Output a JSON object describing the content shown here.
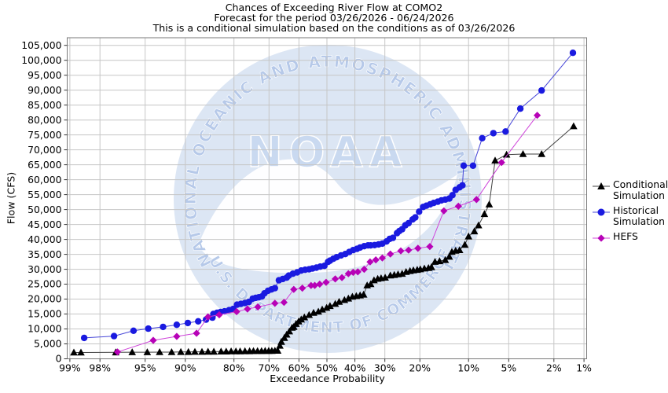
{
  "title_lines": [
    "Chances of Exceeding River Flow at COMO2",
    "Forecast for the period 03/26/2026 - 06/24/2026",
    "This is a conditional simulation based on the conditions as of 03/26/2026"
  ],
  "axes": {
    "x_label": "Exceedance Probability",
    "y_label": "Flow (CFS)",
    "x_ticks": [
      {
        "p": 99,
        "label": "99%"
      },
      {
        "p": 98,
        "label": "98%"
      },
      {
        "p": 95,
        "label": "95%"
      },
      {
        "p": 90,
        "label": "90%"
      },
      {
        "p": 80,
        "label": "80%"
      },
      {
        "p": 70,
        "label": "70%"
      },
      {
        "p": 60,
        "label": "60%"
      },
      {
        "p": 50,
        "label": "50%"
      },
      {
        "p": 40,
        "label": "40%"
      },
      {
        "p": 30,
        "label": "30%"
      },
      {
        "p": 20,
        "label": "20%"
      },
      {
        "p": 10,
        "label": "10%"
      },
      {
        "p": 5,
        "label": "5%"
      },
      {
        "p": 2,
        "label": "2%"
      },
      {
        "p": 1,
        "label": "1%"
      }
    ],
    "y_ticks": [
      {
        "v": 0,
        "label": "0"
      },
      {
        "v": 5000,
        "label": "5,000"
      },
      {
        "v": 10000,
        "label": "10,000"
      },
      {
        "v": 15000,
        "label": "15,000"
      },
      {
        "v": 20000,
        "label": "20,000"
      },
      {
        "v": 25000,
        "label": "25,000"
      },
      {
        "v": 30000,
        "label": "30,000"
      },
      {
        "v": 35000,
        "label": "35,000"
      },
      {
        "v": 40000,
        "label": "40,000"
      },
      {
        "v": 45000,
        "label": "45,000"
      },
      {
        "v": 50000,
        "label": "50,000"
      },
      {
        "v": 55000,
        "label": "55,000"
      },
      {
        "v": 60000,
        "label": "60,000"
      },
      {
        "v": 65000,
        "label": "65,000"
      },
      {
        "v": 70000,
        "label": "70,000"
      },
      {
        "v": 75000,
        "label": "75,000"
      },
      {
        "v": 80000,
        "label": "80,000"
      },
      {
        "v": 85000,
        "label": "85,000"
      },
      {
        "v": 90000,
        "label": "90,000"
      },
      {
        "v": 95000,
        "label": "95,000"
      },
      {
        "v": 100000,
        "label": "100,000"
      },
      {
        "v": 105000,
        "label": "105,000"
      }
    ]
  },
  "legend": {
    "items": [
      {
        "name": "conditional-simulation",
        "label": "Conditional Simulation",
        "marker": "triangle",
        "color": "#000000",
        "line_color": "#3f3f3f"
      },
      {
        "name": "historical-simulation",
        "label": "Historical Simulation",
        "marker": "circle",
        "color": "#1a1ae0",
        "line_color": "#4747d8"
      },
      {
        "name": "hefs",
        "label": "HEFS",
        "marker": "diamond",
        "color": "#b702b7",
        "line_color": "#cf46da"
      }
    ]
  },
  "watermark": {
    "top_arc_text": "NATIONAL OCEANIC AND ATMOSPHERIC ADMINISTRATION",
    "bottom_arc_text": "U.S. DEPARTMENT OF COMMERCE",
    "center_text": "NOAA",
    "circle_color": "#dce6f4",
    "arc_text_color": "#b6c9e9",
    "center_text_color": "#c9d9f0"
  },
  "chart_data": {
    "type": "line",
    "title": "Chances of Exceeding River Flow at COMO2",
    "xlabel": "Exceedance Probability",
    "ylabel": "Flow (CFS)",
    "x_scale": "normal-probability",
    "x_unit": "percent-exceedance",
    "x_range": [
      99,
      1
    ],
    "ylim": [
      0,
      107500
    ],
    "y_tick_step": 5000,
    "grid": true,
    "legend_position": "right",
    "series": [
      {
        "name": "Conditional Simulation",
        "marker": "triangle",
        "color": "#000000",
        "line_color": "#3f3f3f",
        "points": [
          [
            98.9,
            2100
          ],
          [
            98.7,
            2100
          ],
          [
            97.2,
            2150
          ],
          [
            96.1,
            2200
          ],
          [
            94.8,
            2200
          ],
          [
            93.5,
            2250
          ],
          [
            92.0,
            2250
          ],
          [
            90.7,
            2300
          ],
          [
            89.5,
            2300
          ],
          [
            88.4,
            2350
          ],
          [
            87.1,
            2350
          ],
          [
            85.9,
            2400
          ],
          [
            84.7,
            2400
          ],
          [
            83.1,
            2450
          ],
          [
            81.9,
            2450
          ],
          [
            80.7,
            2500
          ],
          [
            79.5,
            2500
          ],
          [
            78.4,
            2500
          ],
          [
            77.1,
            2550
          ],
          [
            75.8,
            2550
          ],
          [
            74.7,
            2600
          ],
          [
            73.5,
            2600
          ],
          [
            72.3,
            2600
          ],
          [
            71.2,
            2650
          ],
          [
            70.1,
            2650
          ],
          [
            69.1,
            2650
          ],
          [
            68.1,
            2700
          ],
          [
            67.2,
            2700
          ],
          [
            66.5,
            4400
          ],
          [
            66.0,
            5700
          ],
          [
            65.0,
            7000
          ],
          [
            64.2,
            8100
          ],
          [
            63.3,
            9200
          ],
          [
            62.4,
            10400
          ],
          [
            61.8,
            10700
          ],
          [
            61.0,
            11700
          ],
          [
            60.1,
            12500
          ],
          [
            59.2,
            13200
          ],
          [
            58.1,
            13900
          ],
          [
            56.4,
            14700
          ],
          [
            54.8,
            15400
          ],
          [
            53.1,
            15800
          ],
          [
            51.7,
            16500
          ],
          [
            50.1,
            17100
          ],
          [
            48.9,
            17700
          ],
          [
            47.0,
            18400
          ],
          [
            45.6,
            19100
          ],
          [
            43.7,
            19700
          ],
          [
            42.3,
            20200
          ],
          [
            40.9,
            20800
          ],
          [
            39.5,
            21050
          ],
          [
            38.2,
            21250
          ],
          [
            37.0,
            21500
          ],
          [
            35.8,
            24600
          ],
          [
            34.6,
            25000
          ],
          [
            33.5,
            26300
          ],
          [
            32.3,
            26800
          ],
          [
            31.2,
            27000
          ],
          [
            29.9,
            27200
          ],
          [
            28.3,
            27900
          ],
          [
            27.1,
            28100
          ],
          [
            26.0,
            28300
          ],
          [
            24.8,
            28500
          ],
          [
            23.7,
            29100
          ],
          [
            22.6,
            29400
          ],
          [
            21.7,
            29650
          ],
          [
            20.7,
            29800
          ],
          [
            19.9,
            30000
          ],
          [
            18.9,
            30260
          ],
          [
            17.9,
            30400
          ],
          [
            17.2,
            30700
          ],
          [
            16.4,
            32500
          ],
          [
            15.4,
            32700
          ],
          [
            14.2,
            33100
          ],
          [
            13.4,
            34200
          ],
          [
            12.9,
            35800
          ],
          [
            12.2,
            36200
          ],
          [
            11.5,
            36400
          ],
          [
            10.6,
            38200
          ],
          [
            10.0,
            41000
          ],
          [
            9.1,
            42700
          ],
          [
            8.5,
            44700
          ],
          [
            7.7,
            48500
          ],
          [
            7.1,
            51700
          ],
          [
            6.4,
            66400
          ],
          [
            5.2,
            68400
          ],
          [
            3.8,
            68600
          ],
          [
            2.6,
            68600
          ],
          [
            1.28,
            77900
          ]
        ]
      },
      {
        "name": "Historical Simulation",
        "marker": "circle",
        "color": "#1a1ae0",
        "line_color": "#4747d8",
        "points": [
          [
            98.6,
            7000
          ],
          [
            97.3,
            7600
          ],
          [
            96.0,
            9400
          ],
          [
            94.7,
            10100
          ],
          [
            93.1,
            10700
          ],
          [
            91.3,
            11400
          ],
          [
            89.6,
            12000
          ],
          [
            87.8,
            12550
          ],
          [
            86.3,
            13150
          ],
          [
            85.0,
            13800
          ],
          [
            84.8,
            15000
          ],
          [
            84.0,
            15400
          ],
          [
            83.2,
            15700
          ],
          [
            82.3,
            15900
          ],
          [
            81.2,
            16300
          ],
          [
            80.2,
            16700
          ],
          [
            79.2,
            18150
          ],
          [
            78.2,
            18400
          ],
          [
            77.1,
            18700
          ],
          [
            76.0,
            19050
          ],
          [
            74.9,
            20180
          ],
          [
            74.0,
            20440
          ],
          [
            73.1,
            20620
          ],
          [
            72.2,
            20880
          ],
          [
            71.4,
            21940
          ],
          [
            70.3,
            22810
          ],
          [
            69.2,
            23240
          ],
          [
            68.1,
            23680
          ],
          [
            66.8,
            26310
          ],
          [
            65.5,
            26760
          ],
          [
            64.2,
            27200
          ],
          [
            63.5,
            27890
          ],
          [
            62.1,
            28520
          ],
          [
            60.6,
            28950
          ],
          [
            59.2,
            29560
          ],
          [
            57.8,
            29830
          ],
          [
            56.4,
            30000
          ],
          [
            55.2,
            30260
          ],
          [
            53.8,
            30530
          ],
          [
            52.4,
            30880
          ],
          [
            50.9,
            31150
          ],
          [
            49.6,
            32470
          ],
          [
            48.9,
            32890
          ],
          [
            47.7,
            33510
          ],
          [
            46.5,
            34040
          ],
          [
            44.9,
            34650
          ],
          [
            43.4,
            35090
          ],
          [
            42.0,
            35790
          ],
          [
            40.6,
            36420
          ],
          [
            39.3,
            36840
          ],
          [
            38.2,
            37290
          ],
          [
            36.8,
            37730
          ],
          [
            35.5,
            38000
          ],
          [
            34.6,
            38000
          ],
          [
            33.3,
            38100
          ],
          [
            32.0,
            38340
          ],
          [
            30.8,
            38600
          ],
          [
            29.5,
            39310
          ],
          [
            28.5,
            40180
          ],
          [
            27.5,
            40520
          ],
          [
            26.3,
            42100
          ],
          [
            25.6,
            42800
          ],
          [
            24.8,
            43420
          ],
          [
            23.9,
            44730
          ],
          [
            23.0,
            45440
          ],
          [
            21.9,
            46680
          ],
          [
            21.2,
            47370
          ],
          [
            20.2,
            49300
          ],
          [
            19.2,
            50880
          ],
          [
            18.4,
            51300
          ],
          [
            17.5,
            51750
          ],
          [
            16.7,
            52200
          ],
          [
            15.8,
            52630
          ],
          [
            15.0,
            53070
          ],
          [
            14.2,
            53330
          ],
          [
            13.4,
            53680
          ],
          [
            12.8,
            54830
          ],
          [
            12.2,
            56570
          ],
          [
            11.5,
            57460
          ],
          [
            11.0,
            58100
          ],
          [
            10.8,
            64700
          ],
          [
            9.3,
            64700
          ],
          [
            8.0,
            73900
          ],
          [
            6.6,
            75600
          ],
          [
            5.3,
            76150
          ],
          [
            4.0,
            83800
          ],
          [
            2.6,
            89900
          ],
          [
            1.3,
            102500
          ]
        ]
      },
      {
        "name": "HEFS",
        "marker": "diamond",
        "color": "#b702b7",
        "line_color": "#cf46da",
        "points": [
          [
            97.1,
            2300
          ],
          [
            94.2,
            6200
          ],
          [
            91.3,
            7500
          ],
          [
            88.1,
            8550
          ],
          [
            85.9,
            14050
          ],
          [
            83.5,
            14740
          ],
          [
            79.3,
            15790
          ],
          [
            76.4,
            16680
          ],
          [
            73.4,
            17370
          ],
          [
            68.1,
            18600
          ],
          [
            65.1,
            18900
          ],
          [
            61.8,
            23250
          ],
          [
            58.8,
            23680
          ],
          [
            55.7,
            24570
          ],
          [
            54.4,
            24600
          ],
          [
            52.6,
            25000
          ],
          [
            50.3,
            25620
          ],
          [
            47.0,
            26760
          ],
          [
            44.6,
            27200
          ],
          [
            42.3,
            28520
          ],
          [
            40.6,
            28950
          ],
          [
            39.0,
            29130
          ],
          [
            36.8,
            30000
          ],
          [
            34.8,
            32470
          ],
          [
            32.9,
            33160
          ],
          [
            30.8,
            33780
          ],
          [
            28.3,
            35100
          ],
          [
            25.2,
            36150
          ],
          [
            23.0,
            36400
          ],
          [
            20.5,
            37020
          ],
          [
            17.6,
            37600
          ],
          [
            14.5,
            49560
          ],
          [
            11.7,
            51100
          ],
          [
            8.8,
            53330
          ],
          [
            5.7,
            65780
          ],
          [
            2.85,
            81570
          ]
        ]
      }
    ]
  }
}
